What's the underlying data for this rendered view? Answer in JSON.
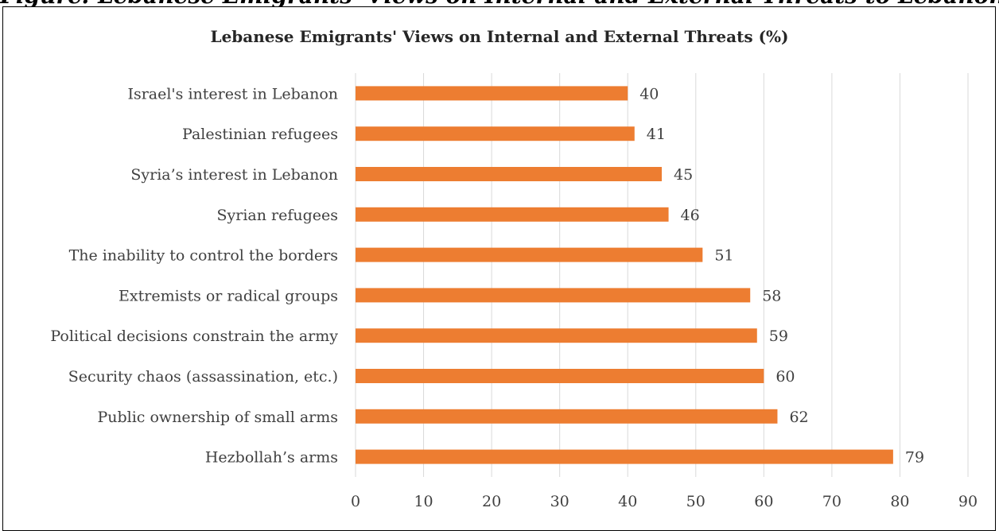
{
  "figure_heading": "Figure: Lebanese Emigrants' Views on Internal and External Threats to Lebanon's Security",
  "chart_data": {
    "type": "bar",
    "orientation": "horizontal",
    "title": "Lebanese Emigrants' Views on Internal and External Threats (%)",
    "categories": [
      "Israel's interest in Lebanon",
      "Palestinian refugees",
      "Syria’s interest in Lebanon",
      "Syrian refugees",
      "The inability to control the borders",
      "Extremists or radical groups",
      "Political decisions constrain the army",
      "Security chaos (assassination, etc.)",
      "Public ownership of small arms",
      "Hezbollah’s arms"
    ],
    "values": [
      40,
      41,
      45,
      46,
      51,
      58,
      59,
      60,
      62,
      79
    ],
    "xlim": [
      0,
      90
    ],
    "xticks": [
      0,
      10,
      20,
      30,
      40,
      50,
      60,
      70,
      80,
      90
    ],
    "xlabel": "",
    "ylabel": "",
    "grid": "vertical",
    "legend": "none",
    "bar_color": "#ED7D31",
    "grid_color": "#D9D9D9"
  }
}
